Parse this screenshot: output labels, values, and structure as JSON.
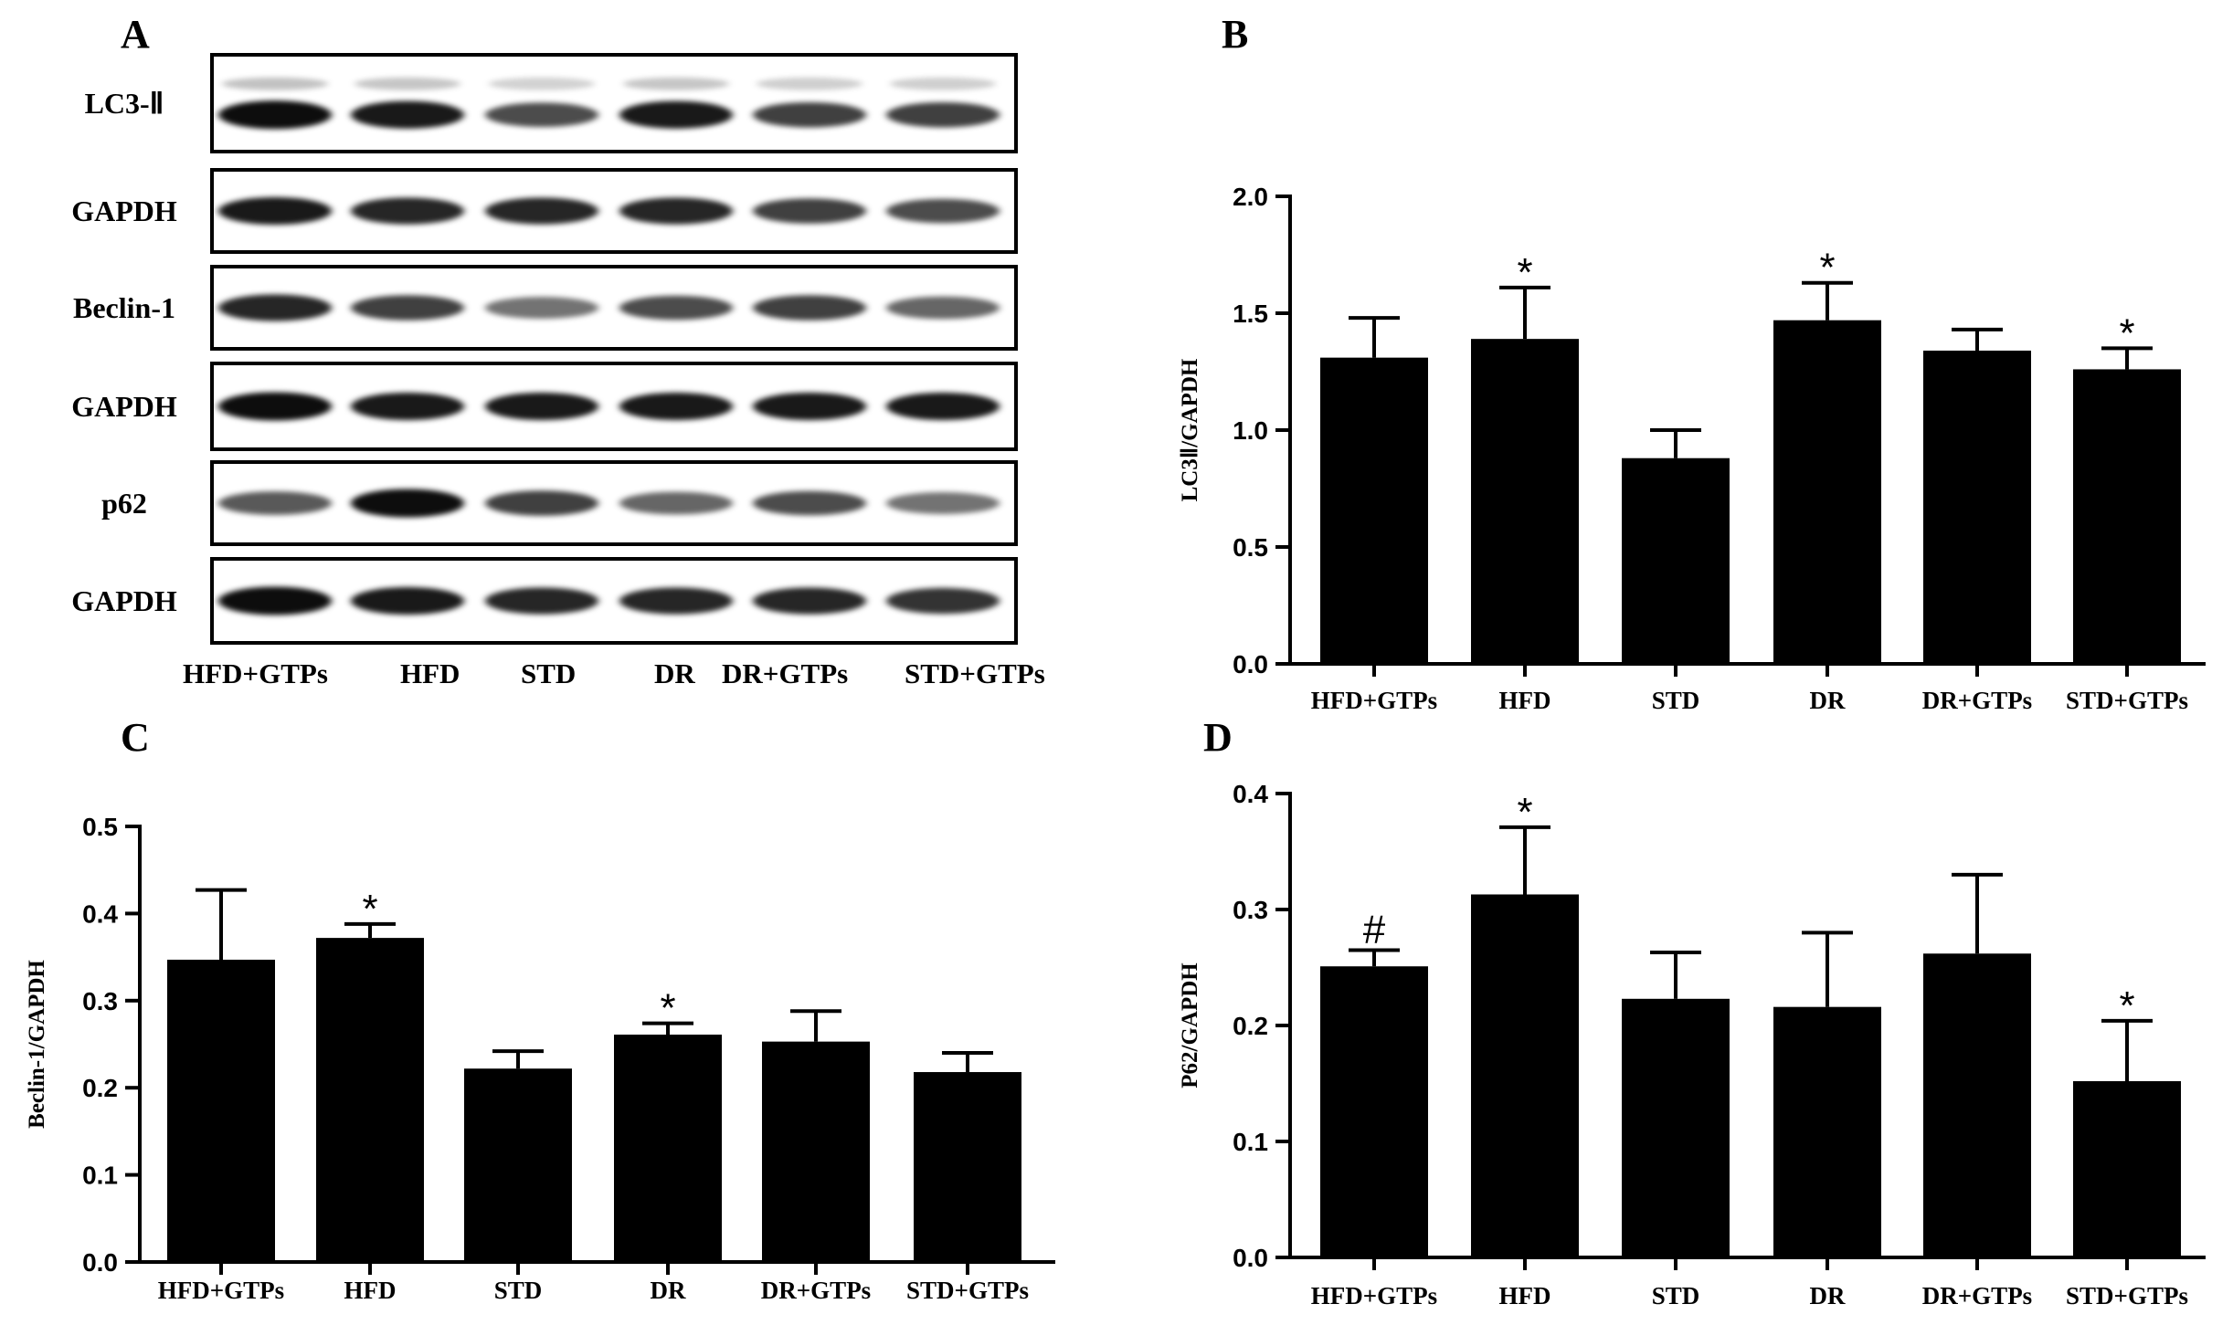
{
  "panels": {
    "A": "A",
    "B": "B",
    "C": "C",
    "D": "D"
  },
  "western_blot": {
    "bands": [
      "LC3-Ⅱ",
      "GAPDH",
      "Beclin-1",
      "GAPDH",
      "p62",
      "GAPDH"
    ],
    "lanes": [
      "HFD+GTPs",
      "HFD",
      "STD",
      "DR",
      "DR+GTPs",
      "STD+GTPs"
    ],
    "intensities": [
      [
        0.95,
        0.9,
        0.7,
        0.9,
        0.75,
        0.75
      ],
      [
        0.9,
        0.85,
        0.85,
        0.85,
        0.75,
        0.7
      ],
      [
        0.85,
        0.75,
        0.55,
        0.7,
        0.75,
        0.6
      ],
      [
        0.95,
        0.9,
        0.9,
        0.9,
        0.9,
        0.9
      ],
      [
        0.65,
        0.95,
        0.75,
        0.6,
        0.7,
        0.55
      ],
      [
        0.95,
        0.9,
        0.85,
        0.85,
        0.85,
        0.8
      ]
    ]
  },
  "chart_data": [
    {
      "panel": "B",
      "type": "bar",
      "categories": [
        "HFD+GTPs",
        "HFD",
        "STD",
        "DR",
        "DR+GTPs",
        "STD+GTPs"
      ],
      "values": [
        1.31,
        1.39,
        0.88,
        1.47,
        1.34,
        1.26
      ],
      "errors": [
        0.17,
        0.22,
        0.12,
        0.16,
        0.09,
        0.09
      ],
      "markers": [
        "",
        "*",
        "",
        "*",
        "",
        "*"
      ],
      "ylabel": "LC3Ⅱ/GAPDH",
      "ylim": [
        0,
        2.0
      ],
      "yticks": [
        "0.0",
        "0.5",
        "1.0",
        "1.5",
        "2.0"
      ]
    },
    {
      "panel": "C",
      "type": "bar",
      "categories": [
        "HFD+GTPs",
        "HFD",
        "STD",
        "DR",
        "DR+GTPs",
        "STD+GTPs"
      ],
      "values": [
        0.347,
        0.372,
        0.222,
        0.261,
        0.253,
        0.218
      ],
      "errors": [
        0.08,
        0.016,
        0.02,
        0.013,
        0.035,
        0.022
      ],
      "markers": [
        "",
        "*",
        "",
        "*",
        "",
        ""
      ],
      "ylabel": "Beclin-1/GAPDH",
      "ylim": [
        0,
        0.5
      ],
      "yticks": [
        "0.0",
        "0.1",
        "0.2",
        "0.3",
        "0.4",
        "0.5"
      ]
    },
    {
      "panel": "D",
      "type": "bar",
      "categories": [
        "HFD+GTPs",
        "HFD",
        "STD",
        "DR",
        "DR+GTPs",
        "STD+GTPs"
      ],
      "values": [
        0.251,
        0.313,
        0.223,
        0.216,
        0.262,
        0.152
      ],
      "errors": [
        0.014,
        0.058,
        0.04,
        0.064,
        0.068,
        0.052
      ],
      "markers": [
        "#",
        "*",
        "",
        "",
        "",
        "*"
      ],
      "ylabel": "P62/GAPDH",
      "ylim": [
        0,
        0.4
      ],
      "yticks": [
        "0.0",
        "0.1",
        "0.2",
        "0.3",
        "0.4"
      ]
    }
  ]
}
